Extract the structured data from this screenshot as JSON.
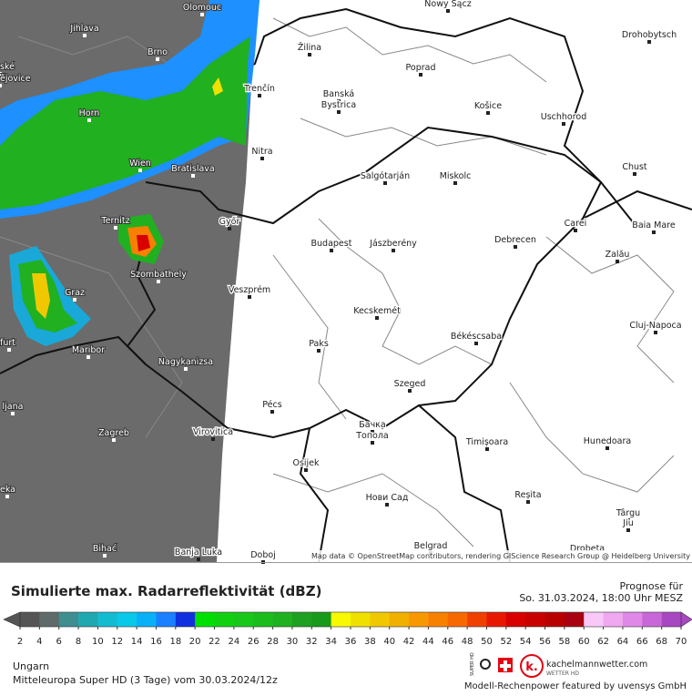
{
  "map": {
    "cities": [
      "Olomouc",
      "Jihlava",
      "Brno",
      "ské",
      "ějovice",
      "Horn",
      "Trenčín",
      "Žilina",
      "Poprad",
      "Nowy Sącz",
      "Drohobytsch",
      "Banská",
      "Bystrica",
      "Košice",
      "Uschhorod",
      "Nitra",
      "Wien",
      "Bratislava",
      "Salgótarján",
      "Miskolc",
      "Chust",
      "Ternitz",
      "Győr",
      "Carei",
      "Baia Mare",
      "Budapest",
      "Jászberény",
      "Debrecen",
      "Szombathely",
      "Zalău",
      "Graz",
      "Veszprém",
      "Kecskemét",
      "Cluj-Napoca",
      "Paks",
      "Békéscsaba",
      "furt",
      "Maribor",
      "Nagykanizsa",
      "Szeged",
      "ljana",
      "Pécs",
      "Zagreb",
      "Virovitica",
      "Бачка",
      "Топола",
      "Timișoara",
      "Hunedoara",
      "Osijek",
      "eka",
      "Нови Сад",
      "Reșita",
      "Târgu",
      "Jiu",
      "Bihać",
      "Banja Luka",
      "Doboj",
      "Belgrad",
      "Drobeta"
    ],
    "attribution": "Map data © OpenStreetMap contributors, rendering GIScience Research Group @ Heidelberg University"
  },
  "footer": {
    "title": "Simulierte max. Radarreflektivität (dBZ)",
    "forecast_label": "Prognose für",
    "forecast_time": "So. 31.03.2024, 18:00 Uhr MESZ",
    "region": "Ungarn",
    "model": "Mitteleuropa Super HD (3 Tage) vom  30.03.2024/12z",
    "credit": "Modell-Rechenpower featured by uvensys GmbH",
    "logo": "kachelmannwetter.com",
    "logo_sub": "WETTER HD",
    "badge": "SUPER HD"
  },
  "legend": {
    "ticks": [
      2,
      4,
      6,
      8,
      10,
      12,
      14,
      16,
      18,
      20,
      22,
      24,
      26,
      28,
      30,
      32,
      34,
      36,
      38,
      40,
      42,
      44,
      46,
      48,
      50,
      52,
      54,
      56,
      58,
      60,
      62,
      64,
      66,
      68,
      70
    ],
    "colors": [
      "#555555",
      "#5f6a6a",
      "#3f8f90",
      "#20a8b0",
      "#12bcd0",
      "#0ac8e8",
      "#08b0f8",
      "#1a80ff",
      "#1030e0",
      "#00e000",
      "#10d010",
      "#18c818",
      "#1cbc1c",
      "#20b020",
      "#20a020",
      "#1a9a1a",
      "#f8f800",
      "#f0e000",
      "#f0c800",
      "#f0b000",
      "#f89800",
      "#f88000",
      "#f86800",
      "#f04000",
      "#e81800",
      "#d80000",
      "#c80000",
      "#b80000",
      "#a80010",
      "#f8c8f8",
      "#f0a8f0",
      "#e088e8",
      "#c868d8",
      "#a848c0"
    ]
  }
}
